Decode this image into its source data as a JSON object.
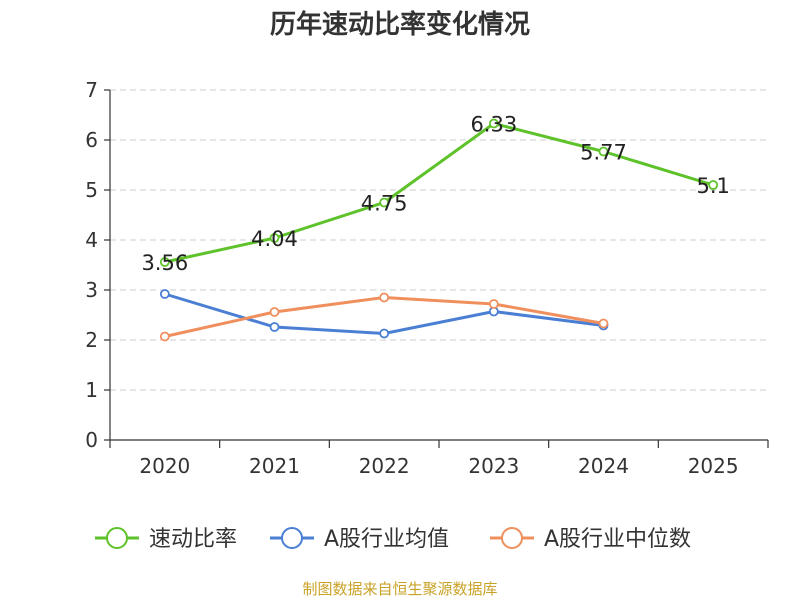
{
  "chart_data": {
    "type": "line",
    "title": "历年速动比率变化情况",
    "categories": [
      "2020",
      "2021",
      "2022",
      "2023",
      "2024",
      "2025"
    ],
    "ylim": [
      0,
      7
    ],
    "yticks": [
      "0",
      "1",
      "2",
      "3",
      "4",
      "5",
      "6",
      "7"
    ],
    "grid": true,
    "legend_position": "bottom",
    "series": [
      {
        "name": "速动比率",
        "color": "#5ec22a",
        "values": [
          3.56,
          4.04,
          4.75,
          6.33,
          5.77,
          5.1
        ],
        "labels": [
          "3.56",
          "4.04",
          "4.75",
          "6.33",
          "5.77",
          "5.1"
        ]
      },
      {
        "name": "A股行业均值",
        "color": "#4a7fd4",
        "values": [
          2.92,
          2.26,
          2.13,
          2.57,
          2.29,
          null
        ]
      },
      {
        "name": "A股行业中位数",
        "color": "#f08f5e",
        "values": [
          2.07,
          2.56,
          2.85,
          2.72,
          2.33,
          null
        ]
      }
    ]
  },
  "footer": {
    "source": "制图数据来自恒生聚源数据库"
  }
}
